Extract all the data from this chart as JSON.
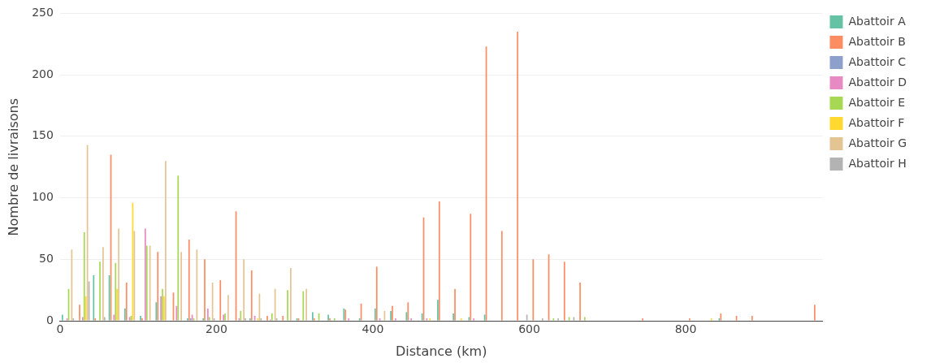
{
  "chart_data": {
    "type": "bar",
    "xlabel": "Distance (km)",
    "ylabel": "Nombre de livraisons",
    "xlim": [
      0,
      975
    ],
    "xticks": [
      0,
      200,
      400,
      600,
      800
    ],
    "ylim": [
      0,
      250
    ],
    "yticks": [
      0,
      50,
      100,
      150,
      200,
      250
    ],
    "grid": "y",
    "legend": "top right",
    "series": [
      {
        "name": "Abattoir A",
        "color": "#66c2a5",
        "x": [
          10,
          50,
          70,
          90,
          110,
          130,
          170,
          190,
          250,
          310,
          330,
          350,
          370,
          390,
          410,
          430,
          450,
          470,
          490,
          510,
          530,
          550,
          850
        ],
        "values": [
          5,
          37,
          37,
          10,
          4,
          15,
          2,
          2,
          2,
          2,
          7,
          5,
          10,
          2,
          10,
          8,
          7,
          6,
          17,
          6,
          3,
          5,
          2
        ]
      },
      {
        "name": "Abattoir B",
        "color": "#fc8d62",
        "x": [
          30,
          50,
          70,
          90,
          110,
          130,
          150,
          170,
          190,
          210,
          230,
          250,
          270,
          290,
          310,
          330,
          350,
          370,
          390,
          410,
          430,
          450,
          470,
          490,
          510,
          530,
          550,
          570,
          590,
          610,
          630,
          650,
          670,
          750,
          810,
          850,
          870,
          890,
          970
        ],
        "values": [
          13,
          2,
          135,
          31,
          2,
          56,
          23,
          66,
          50,
          33,
          89,
          41,
          4,
          4,
          2,
          2,
          2,
          9,
          14,
          44,
          12,
          15,
          84,
          97,
          26,
          87,
          223,
          73,
          235,
          50,
          54,
          48,
          31,
          2,
          2,
          6,
          4,
          4,
          13
        ]
      },
      {
        "name": "Abattoir C",
        "color": "#8da0cb",
        "x": [
          170
        ],
        "values": [
          2
        ]
      },
      {
        "name": "Abattoir D",
        "color": "#e78ac3",
        "x": [
          10,
          30,
          70,
          90,
          110,
          130,
          150,
          170,
          190,
          210,
          230,
          250,
          270,
          370,
          410,
          430,
          450,
          470,
          530
        ],
        "values": [
          2,
          3,
          5,
          3,
          75,
          20,
          12,
          5,
          10,
          5,
          2,
          4,
          1,
          2,
          2,
          2,
          2,
          2,
          2
        ]
      },
      {
        "name": "Abattoir E",
        "color": "#a6d854",
        "x": [
          10,
          30,
          50,
          70,
          90,
          110,
          130,
          150,
          170,
          190,
          210,
          230,
          270,
          290,
          310,
          330,
          350,
          630,
          650,
          670
        ],
        "values": [
          26,
          72,
          48,
          47,
          4,
          61,
          26,
          118,
          2,
          3,
          6,
          8,
          6,
          25,
          24,
          6,
          2,
          2,
          3,
          3
        ]
      },
      {
        "name": "Abattoir F",
        "color": "#ffd92f",
        "x": [
          30,
          70,
          90,
          130,
          250,
          470,
          510,
          830
        ],
        "values": [
          20,
          26,
          96,
          20,
          2,
          2,
          2,
          2
        ]
      },
      {
        "name": "Abattoir G",
        "color": "#e5c494",
        "x": [
          10,
          30,
          50,
          70,
          90,
          110,
          130,
          150,
          170,
          190,
          210,
          230,
          250,
          270,
          290,
          310,
          410
        ],
        "values": [
          58,
          143,
          60,
          75,
          73,
          61,
          130,
          56,
          58,
          31,
          21,
          50,
          22,
          26,
          43,
          26,
          8
        ]
      },
      {
        "name": "Abattoir H",
        "color": "#b3b3b3",
        "x": [
          10,
          30,
          50,
          190,
          230,
          250,
          270,
          590,
          610,
          630,
          650
        ],
        "values": [
          2,
          32,
          3,
          2,
          2,
          2,
          2,
          5,
          2,
          2,
          3
        ]
      }
    ]
  }
}
